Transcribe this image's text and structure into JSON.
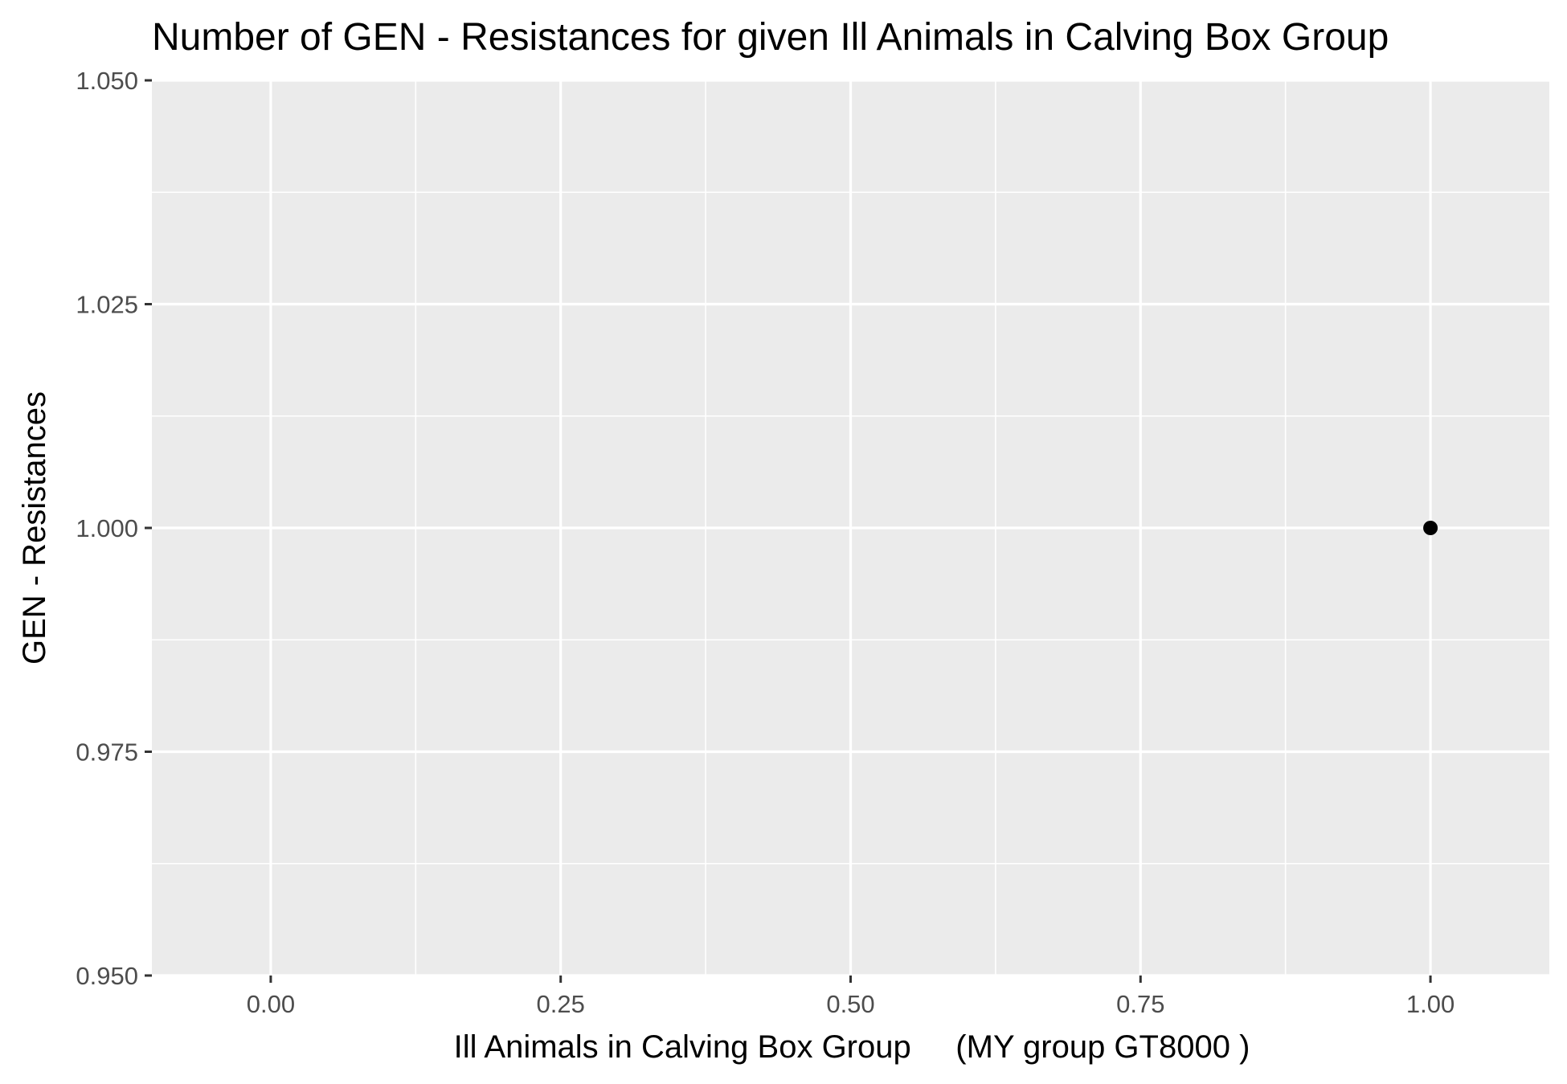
{
  "chart_data": {
    "type": "scatter",
    "title": "Number of GEN - Resistances for given Ill Animals in Calving Box Group",
    "xlabel": "Ill Animals in Calving Box Group     (MY group GT8000 )",
    "ylabel": "GEN - Resistances",
    "xlim": [
      -0.1025,
      1.1025
    ],
    "ylim": [
      0.95,
      1.05
    ],
    "x_ticks": [
      0.0,
      0.25,
      0.5,
      0.75,
      1.0
    ],
    "x_tick_labels": [
      "0.00",
      "0.25",
      "0.50",
      "0.75",
      "1.00"
    ],
    "y_ticks": [
      0.95,
      0.975,
      1.0,
      1.025,
      1.05
    ],
    "y_tick_labels": [
      "0.950",
      "0.975",
      "1.000",
      "1.025",
      "1.050"
    ],
    "grid": true,
    "legend": "none",
    "colors": {
      "panel": "#ebebeb",
      "grid": "#ffffff",
      "point": "#000000",
      "tick_text": "#4d4d4d",
      "axis_text": "#000000"
    },
    "points": [
      {
        "x": 1.0,
        "y": 1.0
      }
    ]
  }
}
